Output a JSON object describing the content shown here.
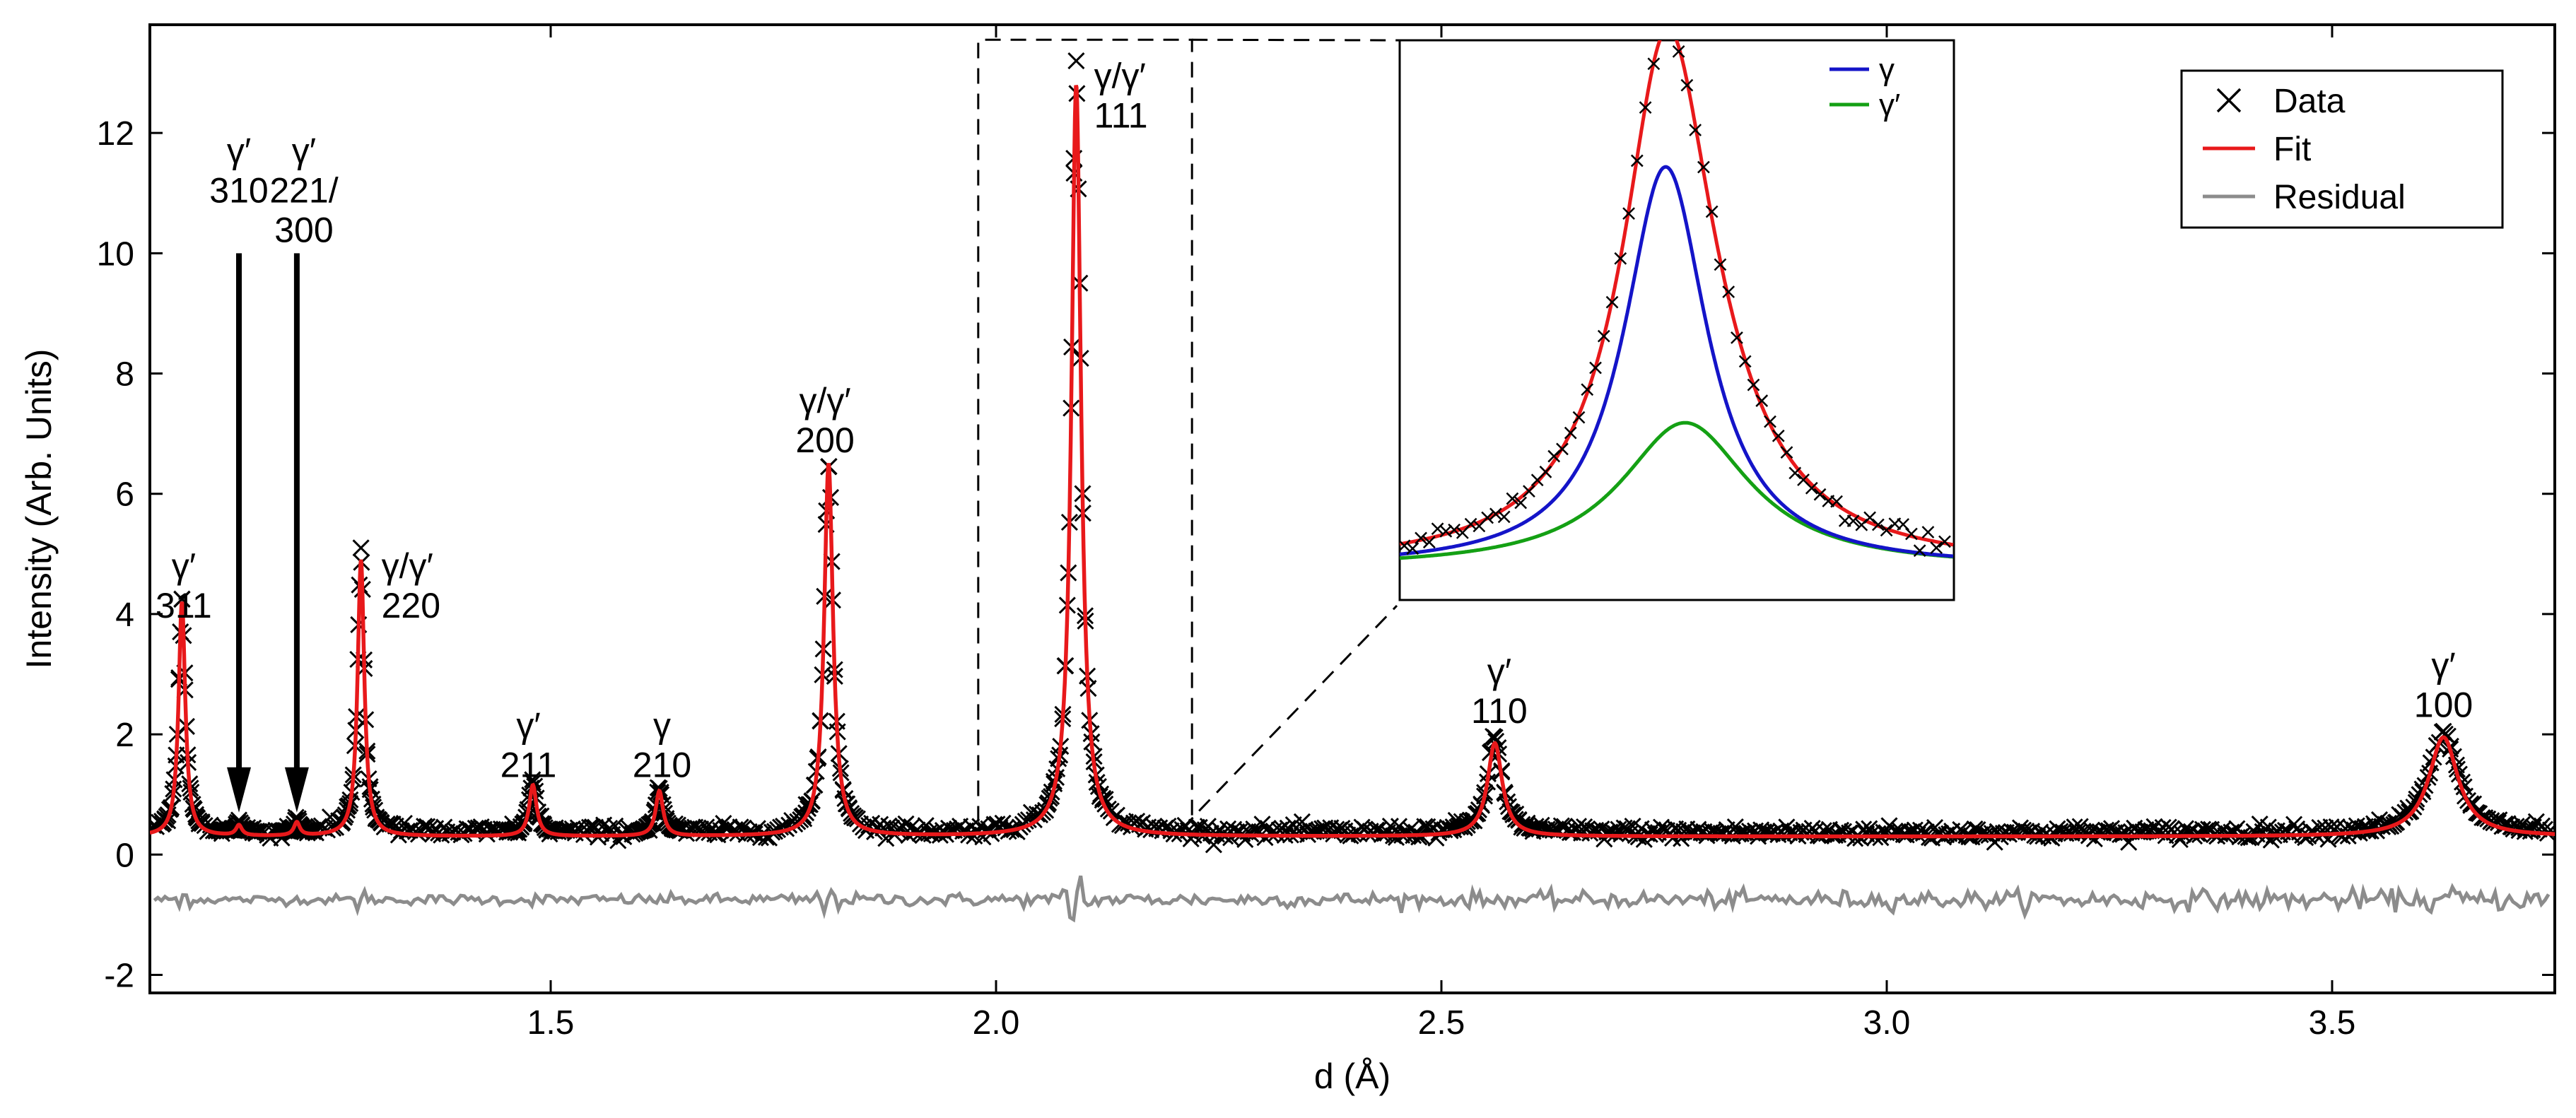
{
  "chart_data": {
    "type": "scatter",
    "title": "",
    "xlabel": "d (Å)",
    "ylabel": "Intensity (Arb. Units)",
    "xlim": [
      1.05,
      3.75
    ],
    "ylim": [
      -2.3,
      13.8
    ],
    "x_ticks": [
      {
        "value": 1.5,
        "label": "1.5"
      },
      {
        "value": 2.0,
        "label": "2.0"
      },
      {
        "value": 2.5,
        "label": "2.5"
      },
      {
        "value": 3.0,
        "label": "3.0"
      },
      {
        "value": 3.5,
        "label": "3.5"
      }
    ],
    "y_ticks": [
      {
        "value": -2,
        "label": "-2"
      },
      {
        "value": 0,
        "label": "0"
      },
      {
        "value": 2,
        "label": "2"
      },
      {
        "value": 4,
        "label": "4"
      },
      {
        "value": 6,
        "label": "6"
      },
      {
        "value": 8,
        "label": "8"
      },
      {
        "value": 10,
        "label": "10"
      },
      {
        "value": 12,
        "label": "12"
      }
    ],
    "background_level": 0.3,
    "residual_offset": -0.75,
    "peaks": [
      {
        "d": 1.086,
        "height": 3.9,
        "width": 0.0045,
        "data_max": 4.25
      },
      {
        "d": 1.15,
        "height": 0.17,
        "width": 0.004,
        "data_max": 0.4
      },
      {
        "d": 1.215,
        "height": 0.22,
        "width": 0.004,
        "data_max": 0.45
      },
      {
        "d": 1.287,
        "height": 4.6,
        "width": 0.0045,
        "data_max": 5.1
      },
      {
        "d": 1.48,
        "height": 0.85,
        "width": 0.005,
        "data_max": 1.2
      },
      {
        "d": 1.622,
        "height": 0.75,
        "width": 0.005,
        "data_max": 1.1
      },
      {
        "d": 1.812,
        "height": 6.2,
        "width": 0.006,
        "data_max": 6.45
      },
      {
        "d": 2.09,
        "height": 12.5,
        "width": 0.0065,
        "data_max": 13.2
      },
      {
        "d": 2.56,
        "height": 1.55,
        "width": 0.01,
        "data_max": 1.95
      },
      {
        "d": 3.625,
        "height": 1.65,
        "width": 0.02,
        "data_max": 2.05
      }
    ],
    "series": [
      {
        "name": "Data",
        "color": "#000000",
        "marker": "x"
      },
      {
        "name": "Fit",
        "color": "#e8191b"
      },
      {
        "name": "Residual",
        "color": "#8c8c8c"
      }
    ],
    "peak_labels": [
      {
        "d": 1.088,
        "line1": "γ′",
        "line2": "311",
        "y": 4.6,
        "align": "middle"
      },
      {
        "d": 1.15,
        "line1": "γ′",
        "line2": "310",
        "y": 11.5,
        "align": "middle"
      },
      {
        "d": 1.223,
        "line1": "γ′",
        "line2": "221/",
        "line3": "300",
        "y": 11.5,
        "align": "middle"
      },
      {
        "d": 1.31,
        "line1": "γ/γ′",
        "line2": "220",
        "y": 4.6,
        "align": "start"
      },
      {
        "d": 1.475,
        "line1": "γ′",
        "line2": "211",
        "y": 1.95,
        "align": "middle"
      },
      {
        "d": 1.625,
        "line1": "γ",
        "line2": "210",
        "y": 1.95,
        "align": "middle"
      },
      {
        "d": 1.808,
        "line1": "γ/γ′",
        "line2": "200",
        "y": 7.35,
        "align": "middle"
      },
      {
        "d": 2.11,
        "line1": "γ/γ′",
        "line2": "111",
        "y": 12.75,
        "align": "start"
      },
      {
        "d": 2.565,
        "line1": "γ′",
        "line2": "110",
        "y": 2.85,
        "align": "middle"
      },
      {
        "d": 3.625,
        "line1": "γ′",
        "line2": "100",
        "y": 2.95,
        "align": "middle"
      }
    ],
    "arrows": [
      {
        "d": 1.15,
        "y_top": 10.0,
        "y_tip": 0.7
      },
      {
        "d": 1.215,
        "y_top": 10.0,
        "y_tip": 0.7
      }
    ],
    "zoom_box": {
      "x_from": 1.98,
      "x_to": 2.22,
      "y_from": 0.55,
      "y_to": 13.55
    },
    "legend": {
      "position": "top-right",
      "entries": [
        "Data",
        "Fit",
        "Residual"
      ]
    },
    "inset": {
      "type": "line",
      "x_range": [
        2.06,
        2.12
      ],
      "y_range": [
        0,
        13.5
      ],
      "baseline": 0.3,
      "peak_center": 2.09,
      "gamma": {
        "name": "γ",
        "color": "#1414c8",
        "center": 2.0888,
        "height": 10.2,
        "width": 0.0055
      },
      "gamma_prime": {
        "name": "γ′",
        "color": "#14a014",
        "center": 2.0909,
        "height": 3.7,
        "width": 0.0085
      },
      "fit_color": "#e8191b",
      "legend": {
        "position": "top-right",
        "entries": [
          "γ",
          "γ′"
        ]
      }
    }
  }
}
